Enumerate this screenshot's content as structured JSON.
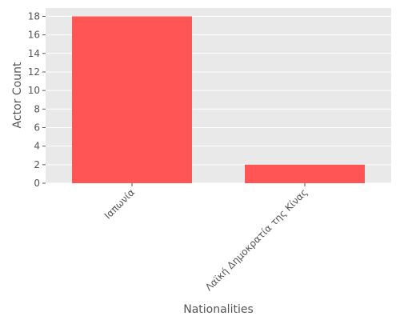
{
  "colors": {
    "panel_background": "#e9e9e9",
    "grid": "#ffffff",
    "bar": "#ff5555",
    "text": "#555555"
  },
  "chart_data": {
    "type": "bar",
    "categories": [
      "Ιαπωνία",
      "Λαϊκή Δημοκρατία της Κίνας"
    ],
    "values": [
      18,
      2
    ],
    "xlabel": "Nationalities",
    "ylabel": "Actor Count",
    "ylim": [
      0,
      18.9
    ],
    "yticks": [
      0,
      2,
      4,
      6,
      8,
      10,
      12,
      14,
      16,
      18
    ],
    "grid": true,
    "legend": "none"
  }
}
